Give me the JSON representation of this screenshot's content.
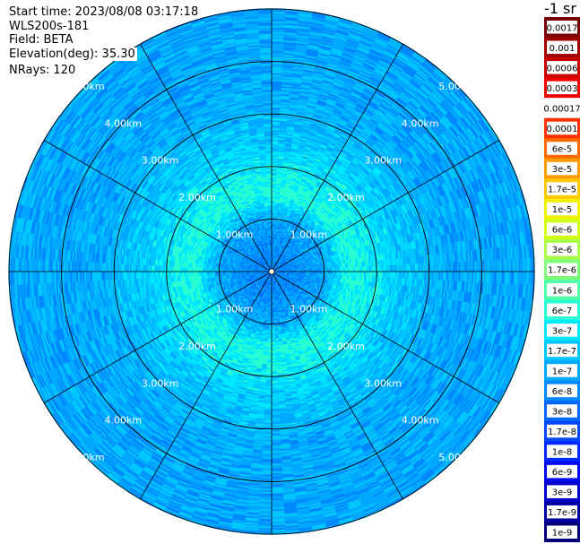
{
  "header": {
    "start_time": "Start time: 2023/08/08 03:17:18",
    "device": "WLS200s-181",
    "field": "Field: BETA",
    "elevation": "Elevation(deg): 35.30",
    "nrays": "NRays: 120"
  },
  "colorbar": {
    "unit": "-1 sr",
    "labels": [
      "0.0017",
      "0.001",
      "0.0006",
      "0.0003",
      "0.00017",
      "0.0001",
      "6e-5",
      "3e-5",
      "1.7e-5",
      "1e-5",
      "6e-6",
      "3e-6",
      "1.7e-6",
      "1e-6",
      "6e-7",
      "3e-7",
      "1.7e-7",
      "1e-7",
      "6e-8",
      "3e-8",
      "1.7e-8",
      "1e-8",
      "6e-9",
      "3e-9",
      "1.7e-9",
      "1e-9"
    ],
    "colors": [
      "#7a0000",
      "#a00000",
      "#c80000",
      "#f00000",
      "#ffffff",
      "#ff3000",
      "#ff6a00",
      "#ff9a00",
      "#ffc800",
      "#f0f000",
      "#d2ff18",
      "#a8ff48",
      "#7cff78",
      "#52ffa6",
      "#28ffd2",
      "#00e8ff",
      "#00c8ff",
      "#00a8ff",
      "#0088ff",
      "#0068ff",
      "#0048ff",
      "#0028ff",
      "#0008f0",
      "#0000c8",
      "#0000a0",
      "#00007a"
    ]
  },
  "chart_data": {
    "type": "heatmap",
    "projection": "polar (PPI scan)",
    "ring_labels": [
      "1.00km",
      "2.00km",
      "3.00km",
      "4.00km",
      "5.00km"
    ],
    "ring_distances_km": [
      1,
      2,
      3,
      4,
      5
    ],
    "max_range_km": 5.0,
    "spoke_angles_deg": [
      0,
      30,
      60,
      90,
      120,
      150,
      180,
      210,
      240,
      270,
      300,
      330
    ],
    "rays": 120,
    "radial_profile": [
      {
        "range_km": 0.3,
        "color_index": 18
      },
      {
        "range_km": 1.0,
        "color_index": 17
      },
      {
        "range_km": 1.5,
        "color_index": 14
      },
      {
        "range_km": 2.0,
        "color_index": 15
      },
      {
        "range_km": 2.5,
        "color_index": 16
      },
      {
        "range_km": 3.5,
        "color_index": 17
      },
      {
        "range_km": 4.5,
        "color_index": 17
      },
      {
        "range_km": 5.0,
        "color_index": 17
      }
    ],
    "grid": true
  }
}
